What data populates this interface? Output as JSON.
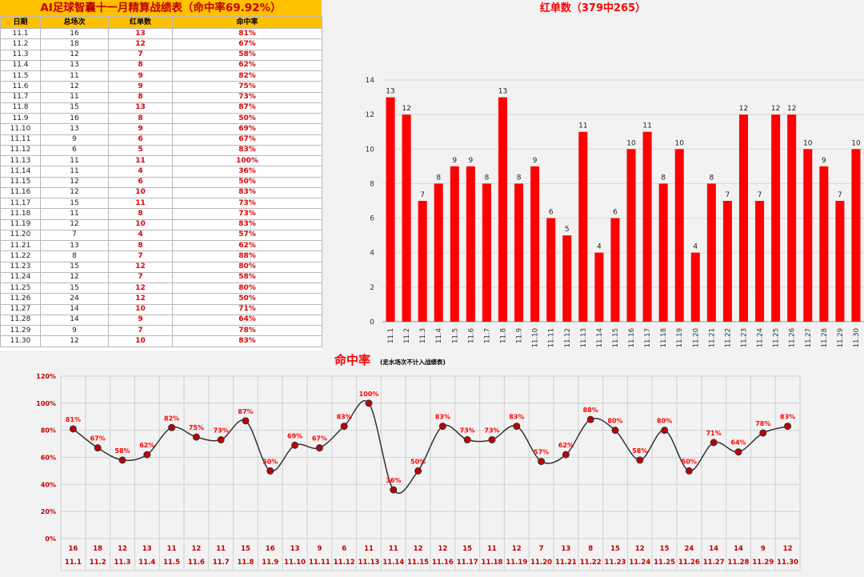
{
  "table": {
    "title": "AI足球智囊十一月精算战绩表（命中率69.92%）",
    "headers": [
      "日期",
      "总场次",
      "红单数",
      "命中率"
    ],
    "rows": [
      [
        "11.1",
        "16",
        "13",
        "81%"
      ],
      [
        "11.2",
        "18",
        "12",
        "67%"
      ],
      [
        "11.3",
        "12",
        "7",
        "58%"
      ],
      [
        "11.4",
        "13",
        "8",
        "62%"
      ],
      [
        "11.5",
        "11",
        "9",
        "82%"
      ],
      [
        "11.6",
        "12",
        "9",
        "75%"
      ],
      [
        "11.7",
        "11",
        "8",
        "73%"
      ],
      [
        "11.8",
        "15",
        "13",
        "87%"
      ],
      [
        "11.9",
        "16",
        "8",
        "50%"
      ],
      [
        "11.10",
        "13",
        "9",
        "69%"
      ],
      [
        "11.11",
        "9",
        "6",
        "67%"
      ],
      [
        "11.12",
        "6",
        "5",
        "83%"
      ],
      [
        "11.13",
        "11",
        "11",
        "100%"
      ],
      [
        "11.14",
        "11",
        "4",
        "36%"
      ],
      [
        "11.15",
        "12",
        "6",
        "50%"
      ],
      [
        "11.16",
        "12",
        "10",
        "83%"
      ],
      [
        "11.17",
        "15",
        "11",
        "73%"
      ],
      [
        "11.18",
        "11",
        "8",
        "73%"
      ],
      [
        "11.19",
        "12",
        "10",
        "83%"
      ],
      [
        "11.20",
        "7",
        "4",
        "57%"
      ],
      [
        "11.21",
        "13",
        "8",
        "62%"
      ],
      [
        "11.22",
        "8",
        "7",
        "88%"
      ],
      [
        "11.23",
        "15",
        "12",
        "80%"
      ],
      [
        "11.24",
        "12",
        "7",
        "58%"
      ],
      [
        "11.25",
        "15",
        "12",
        "80%"
      ],
      [
        "11.26",
        "24",
        "12",
        "50%"
      ],
      [
        "11.27",
        "14",
        "10",
        "71%"
      ],
      [
        "11.28",
        "14",
        "9",
        "64%"
      ],
      [
        "11.29",
        "9",
        "7",
        "78%"
      ],
      [
        "11.30",
        "12",
        "10",
        "83%"
      ]
    ]
  },
  "chart_data": [
    {
      "type": "bar",
      "title": "红单数（379中265）",
      "categories": [
        "11.1",
        "11.2",
        "11.3",
        "11.4",
        "11.5",
        "11.6",
        "11.7",
        "11.8",
        "11.9",
        "11.10",
        "11.11",
        "11.12",
        "11.13",
        "11.14",
        "11.15",
        "11.16",
        "11.17",
        "11.18",
        "11.19",
        "11.20",
        "11.21",
        "11.22",
        "11.23",
        "11.24",
        "11.25",
        "11.26",
        "11.27",
        "11.28",
        "11.29",
        "11.30"
      ],
      "values": [
        13,
        12,
        7,
        8,
        9,
        9,
        8,
        13,
        8,
        9,
        6,
        5,
        11,
        4,
        6,
        10,
        11,
        8,
        10,
        4,
        8,
        7,
        12,
        7,
        12,
        12,
        10,
        9,
        7,
        10
      ],
      "ylim": [
        0,
        14
      ],
      "yticks": [
        "0",
        "2",
        "4",
        "6",
        "8",
        "10",
        "12",
        "14"
      ],
      "color": "#ff0000",
      "grid": true
    },
    {
      "type": "line",
      "title": "命中率",
      "subtitle": "(走水场次不计入战绩表)",
      "categories": [
        "11.1",
        "11.2",
        "11.3",
        "11.4",
        "11.5",
        "11.6",
        "11.7",
        "11.8",
        "11.9",
        "11.10",
        "11.11",
        "11.12",
        "11.13",
        "11.14",
        "11.15",
        "11.16",
        "11.17",
        "11.18",
        "11.19",
        "11.20",
        "11.21",
        "11.22",
        "11.23",
        "11.24",
        "11.25",
        "11.26",
        "11.27",
        "11.28",
        "11.29",
        "11.30"
      ],
      "values": [
        81,
        67,
        58,
        62,
        82,
        75,
        73,
        87,
        50,
        69,
        67,
        83,
        100,
        36,
        50,
        83,
        73,
        73,
        83,
        57,
        62,
        88,
        80,
        58,
        80,
        50,
        71,
        64,
        78,
        83
      ],
      "value_labels": [
        "81%",
        "67%",
        "58%",
        "62%",
        "82%",
        "75%",
        "73%",
        "87%",
        "50%",
        "69%",
        "67%",
        "83%",
        "100%",
        "36%",
        "50%",
        "83%",
        "73%",
        "73%",
        "83%",
        "57%",
        "62%",
        "88%",
        "80%",
        "58%",
        "80%",
        "50%",
        "71%",
        "64%",
        "78%",
        "83%"
      ],
      "totals": [
        "16",
        "18",
        "12",
        "13",
        "11",
        "12",
        "11",
        "15",
        "16",
        "13",
        "9",
        "6",
        "11",
        "11",
        "12",
        "12",
        "15",
        "11",
        "12",
        "7",
        "13",
        "8",
        "15",
        "12",
        "15",
        "24",
        "14",
        "14",
        "9",
        "12"
      ],
      "ylim": [
        0,
        120
      ],
      "yticks": [
        "0%",
        "20%",
        "40%",
        "60%",
        "80%",
        "100%",
        "120%"
      ],
      "line_color": "#333333",
      "marker_color": "#c00000",
      "label_color": "#ff0000",
      "grid": true
    }
  ]
}
